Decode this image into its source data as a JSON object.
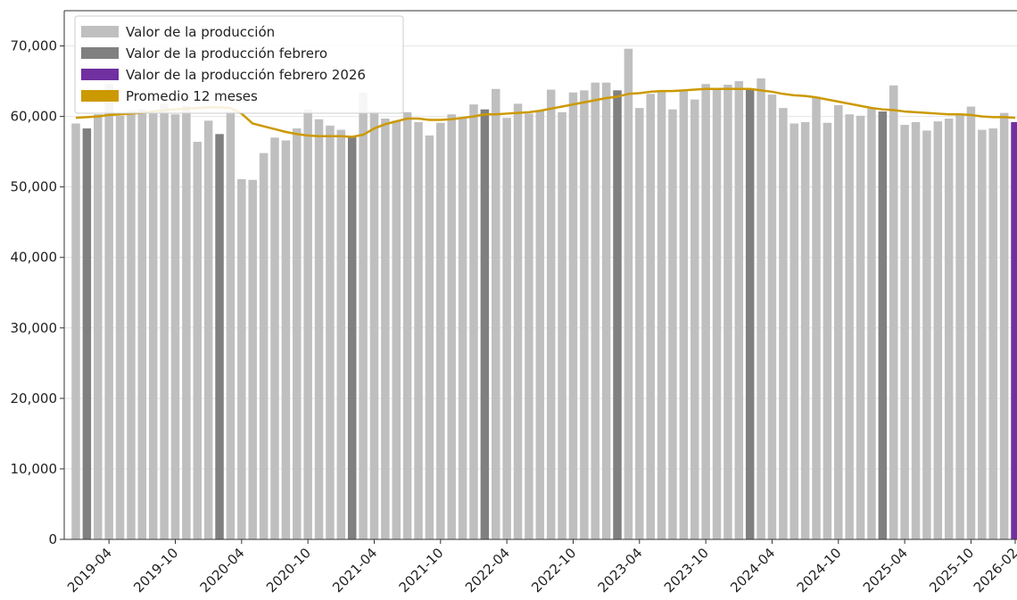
{
  "chart_data": {
    "type": "bar",
    "categories": [
      null,
      null,
      null,
      "2019-04",
      null,
      null,
      null,
      null,
      null,
      "2019-10",
      null,
      null,
      null,
      null,
      null,
      "2020-04",
      null,
      null,
      null,
      null,
      null,
      "2020-10",
      null,
      null,
      null,
      null,
      null,
      "2021-04",
      null,
      null,
      null,
      null,
      null,
      "2021-10",
      null,
      null,
      null,
      null,
      null,
      "2022-04",
      null,
      null,
      null,
      null,
      null,
      "2022-10",
      null,
      null,
      null,
      null,
      null,
      "2023-04",
      null,
      null,
      null,
      null,
      null,
      "2023-10",
      null,
      null,
      null,
      null,
      null,
      "2024-04",
      null,
      null,
      null,
      null,
      null,
      "2024-10",
      null,
      null,
      null,
      null,
      null,
      "2025-04",
      null,
      null,
      null,
      null,
      null,
      "2025-10",
      null,
      null,
      null,
      "2026-02"
    ],
    "series": [
      {
        "name": "Valor de la producción",
        "color": "#bfbfbf",
        "values": [
          59000,
          null,
          60300,
          64600,
          60100,
          60800,
          61000,
          60400,
          61800,
          60300,
          61500,
          56400,
          59400,
          null,
          60700,
          51100,
          51000,
          54800,
          57000,
          56600,
          58300,
          61000,
          59600,
          58700,
          58100,
          null,
          63400,
          60700,
          59700,
          59400,
          60600,
          59200,
          57300,
          59100,
          60300,
          59800,
          61700,
          null,
          63900,
          59800,
          61800,
          60400,
          60800,
          63800,
          60600,
          63400,
          63700,
          64800,
          64800,
          null,
          69600,
          61200,
          63200,
          63500,
          61000,
          63600,
          62400,
          64600,
          63800,
          64500,
          65000,
          null,
          65400,
          63100,
          61200,
          59000,
          59200,
          62800,
          59100,
          61600,
          60300,
          60100,
          61100,
          null,
          64400,
          58800,
          59200,
          58000,
          59300,
          59700,
          60200,
          61400,
          58100,
          58300,
          60500,
          null
        ]
      },
      {
        "name": "Valor de la producción febrero",
        "color": "#808080",
        "values": [
          null,
          58300,
          null,
          null,
          null,
          null,
          null,
          null,
          null,
          null,
          null,
          null,
          null,
          57500,
          null,
          null,
          null,
          null,
          null,
          null,
          null,
          null,
          null,
          null,
          null,
          57100,
          null,
          null,
          null,
          null,
          null,
          null,
          null,
          null,
          null,
          null,
          null,
          61000,
          null,
          null,
          null,
          null,
          null,
          null,
          null,
          null,
          null,
          null,
          null,
          63700,
          null,
          null,
          null,
          null,
          null,
          null,
          null,
          null,
          null,
          null,
          null,
          63800,
          null,
          null,
          null,
          null,
          null,
          null,
          null,
          null,
          null,
          null,
          null,
          60700,
          null,
          null,
          null,
          null,
          null,
          null,
          null,
          null,
          null,
          null,
          null,
          null
        ]
      },
      {
        "name": "Valor de la producción febrero 2026",
        "color": "#7030a0",
        "values": [
          null,
          null,
          null,
          null,
          null,
          null,
          null,
          null,
          null,
          null,
          null,
          null,
          null,
          null,
          null,
          null,
          null,
          null,
          null,
          null,
          null,
          null,
          null,
          null,
          null,
          null,
          null,
          null,
          null,
          null,
          null,
          null,
          null,
          null,
          null,
          null,
          null,
          null,
          null,
          null,
          null,
          null,
          null,
          null,
          null,
          null,
          null,
          null,
          null,
          null,
          null,
          null,
          null,
          null,
          null,
          null,
          null,
          null,
          null,
          null,
          null,
          null,
          null,
          null,
          null,
          null,
          null,
          null,
          null,
          null,
          null,
          null,
          null,
          null,
          null,
          null,
          null,
          null,
          null,
          null,
          null,
          null,
          null,
          null,
          null,
          59200
        ]
      },
      {
        "name": "Promedio 12 meses",
        "type": "line",
        "color": "#cc9900",
        "values": [
          59800,
          59900,
          60000,
          60200,
          60300,
          60400,
          60500,
          60700,
          60900,
          61000,
          61100,
          61200,
          61300,
          61300,
          61200,
          60400,
          59000,
          58600,
          58200,
          57800,
          57500,
          57300,
          57200,
          57200,
          57200,
          57100,
          57400,
          58300,
          58900,
          59300,
          59700,
          59700,
          59500,
          59500,
          59600,
          59800,
          60000,
          60300,
          60300,
          60400,
          60500,
          60600,
          60800,
          61100,
          61400,
          61700,
          62000,
          62300,
          62600,
          62800,
          63200,
          63300,
          63500,
          63600,
          63600,
          63700,
          63800,
          63900,
          63900,
          63900,
          63900,
          63900,
          63700,
          63500,
          63200,
          63000,
          62900,
          62700,
          62400,
          62100,
          61800,
          61500,
          61200,
          61000,
          60900,
          60700,
          60600,
          60500,
          60400,
          60300,
          60300,
          60200,
          60000,
          59900,
          59900,
          59800
        ]
      }
    ],
    "ylim": [
      0,
      75000
    ],
    "yticks": [
      0,
      {
        "value": 10000,
        "label": "10,000"
      },
      {
        "value": 20000,
        "label": "20,000"
      },
      {
        "value": 30000,
        "label": "30,000"
      },
      {
        "value": 40000,
        "label": "40,000"
      },
      {
        "value": 50000,
        "label": "50,000"
      },
      {
        "value": 60000,
        "label": "60,000"
      },
      {
        "value": 70000,
        "label": "70,000"
      }
    ],
    "grid": true,
    "legend": "upper left"
  }
}
